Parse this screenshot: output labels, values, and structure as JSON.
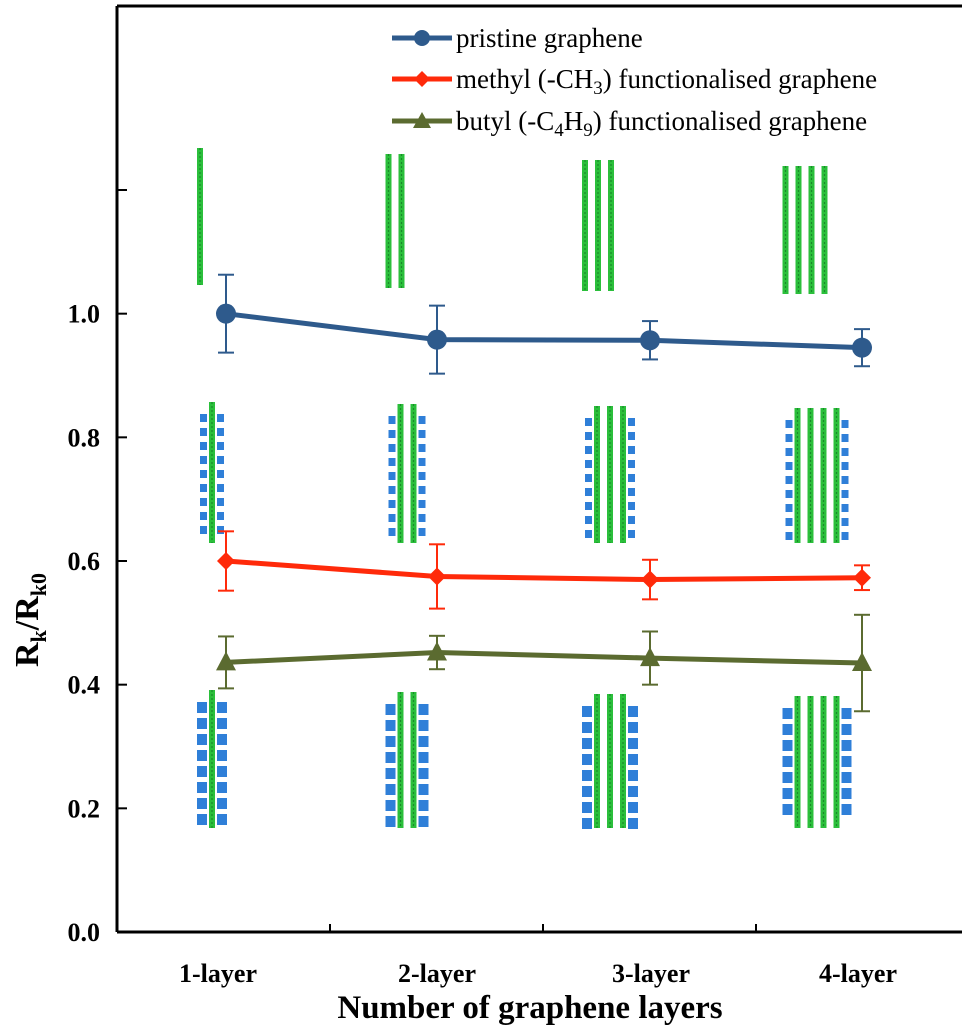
{
  "chart_data": {
    "type": "line",
    "title": "",
    "categories": [
      "1-layer",
      "2-layer",
      "3-layer",
      "4-layer"
    ],
    "xlabel": "Number of graphene layers",
    "ylabel": "Rk/Rk0",
    "ylabel_parts": {
      "main1": "R",
      "sub1": "k",
      "sep": "/",
      "main2": "R",
      "sub2": "k0"
    },
    "ylim": [
      0.0,
      1.2
    ],
    "yticks": [
      "0.0",
      "0.2",
      "0.4",
      "0.6",
      "0.8",
      "1.0"
    ],
    "grid": false,
    "legend_position": "top-right",
    "series": [
      {
        "name": "pristine graphene",
        "legend": {
          "pre": "pristine graphene"
        },
        "color": "#2e5a8c",
        "marker": "circle",
        "values": [
          1.0,
          0.958,
          0.957,
          0.945
        ],
        "errors": [
          0.063,
          0.055,
          0.031,
          0.03
        ]
      },
      {
        "name": "methyl (-CH3) functionalised graphene",
        "legend": {
          "pre": "methyl (-CH",
          "sub1": "3",
          "post": ") functionalised graphene"
        },
        "color": "#ff2a0a",
        "marker": "diamond",
        "values": [
          0.6,
          0.575,
          0.57,
          0.573
        ],
        "errors": [
          0.048,
          0.052,
          0.032,
          0.02
        ]
      },
      {
        "name": "butyl (-C4H9) functionalised graphene",
        "legend": {
          "pre": "butyl (-C",
          "sub1": "4",
          "mid": "H",
          "sub2": "9",
          "post": ") functionalised graphene"
        },
        "color": "#5b6b30",
        "marker": "triangle",
        "values": [
          0.436,
          0.452,
          0.443,
          0.435
        ],
        "errors": [
          0.042,
          0.027,
          0.043,
          0.078
        ]
      }
    ],
    "insets": [
      {
        "group": "pristine",
        "layers": [
          1,
          2,
          3,
          4
        ]
      },
      {
        "group": "methyl",
        "layers": [
          1,
          2,
          3,
          4
        ]
      },
      {
        "group": "butyl",
        "layers": [
          1,
          2,
          3,
          4
        ]
      }
    ]
  }
}
